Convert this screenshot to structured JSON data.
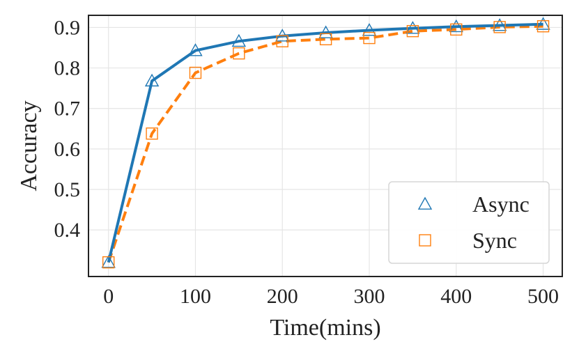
{
  "chart_data": {
    "type": "line",
    "title": "",
    "xlabel": "Time(mins)",
    "ylabel": "Accuracy",
    "xlim": [
      -23,
      522
    ],
    "ylim": [
      0.285,
      0.93
    ],
    "xticks": [
      0,
      100,
      200,
      300,
      400,
      500
    ],
    "yticks": [
      0.4,
      0.5,
      0.6,
      0.7,
      0.8,
      0.9
    ],
    "ytick_labels": [
      "0.4",
      "0.5",
      "0.6",
      "0.7",
      "0.8",
      "0.9"
    ],
    "grid": true,
    "legend_position": "lower-right",
    "x": [
      0,
      50,
      100,
      150,
      200,
      250,
      300,
      350,
      400,
      450,
      500
    ],
    "series": [
      {
        "name": "Async",
        "color": "#1f77b4",
        "line_style": "solid",
        "marker": "triangle",
        "values": [
          0.32,
          0.768,
          0.843,
          0.866,
          0.879,
          0.887,
          0.893,
          0.898,
          0.902,
          0.905,
          0.908
        ]
      },
      {
        "name": "Sync",
        "color": "#ff7f0e",
        "line_style": "dashed",
        "marker": "square",
        "values": [
          0.32,
          0.638,
          0.788,
          0.836,
          0.866,
          0.871,
          0.874,
          0.891,
          0.895,
          0.901,
          0.903
        ]
      }
    ]
  }
}
